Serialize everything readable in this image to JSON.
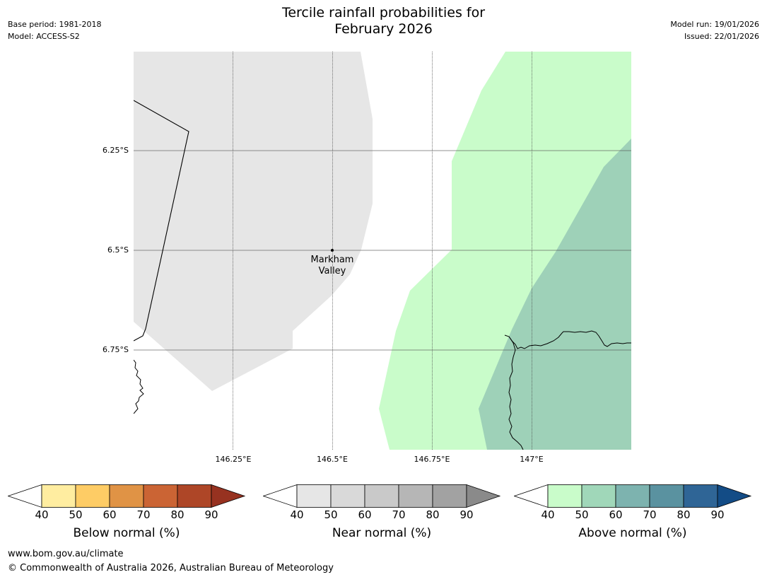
{
  "header": {
    "title_line1": "Tercile rainfall probabilities for",
    "title_line2": "February 2026",
    "base_period": "Base period: 1981-2018",
    "model": "Model: ACCESS-S2",
    "model_run": "Model run: 19/01/2026",
    "issued": "Issued: 22/01/2026"
  },
  "map": {
    "lat_labels": [
      "6.25°S",
      "6.5°S",
      "6.75°S"
    ],
    "lon_labels": [
      "146.25°E",
      "146.5°E",
      "146.75°E",
      "147°E"
    ],
    "town": {
      "name_line1": "Markham",
      "name_line2": "Valley"
    },
    "colors": {
      "near_normal_40": "#e6e6e6",
      "above_normal_40": "#c9fcca",
      "above_normal_50": "#9ed1b8",
      "background": "#ffffff"
    }
  },
  "colorbars": [
    {
      "name": "below",
      "title": "Below normal (%)",
      "ticks": [
        "40",
        "50",
        "60",
        "70",
        "80",
        "90"
      ],
      "colors": [
        "#ffeda0",
        "#fecc65",
        "#e09345",
        "#cb6434",
        "#ae4627",
        "#973220"
      ]
    },
    {
      "name": "near",
      "title": "Near normal (%)",
      "ticks": [
        "40",
        "50",
        "60",
        "70",
        "80",
        "90"
      ],
      "colors": [
        "#e6e6e6",
        "#d9d9d9",
        "#c9c9c9",
        "#b6b6b6",
        "#a2a2a2",
        "#8a8a8a"
      ]
    },
    {
      "name": "above",
      "title": "Above normal (%)",
      "ticks": [
        "40",
        "50",
        "60",
        "70",
        "80",
        "90"
      ],
      "colors": [
        "#c9fcca",
        "#a0d7b9",
        "#7db3af",
        "#5a92a0",
        "#2f6596",
        "#134c86"
      ]
    }
  ],
  "footer": {
    "url": "www.bom.gov.au/climate",
    "copyright": "© Commonwealth of Australia 2026, Australian Bureau of Meteorology"
  }
}
